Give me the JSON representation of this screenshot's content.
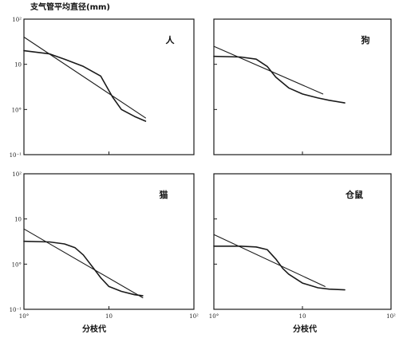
{
  "figure": {
    "ylabel": "支气管平均直径(mm)",
    "xlabel": "分枝代",
    "colors": {
      "line": "#1a1a1a",
      "frame": "#1a1a1a",
      "background": "#ffffff"
    }
  },
  "chart_data": [
    {
      "type": "line",
      "label": "人",
      "xscale": "log",
      "yscale": "log",
      "xlim": [
        1,
        100
      ],
      "ylim": [
        0.1,
        100
      ],
      "xticks": [
        "10°",
        "10",
        "10²"
      ],
      "yticks": [
        "10²",
        "10",
        "10°",
        "10⁻¹"
      ],
      "grid": false,
      "series": [
        {
          "x": [
            1,
            2,
            3,
            5,
            8,
            11,
            14,
            20,
            27
          ],
          "y": [
            20,
            17,
            13,
            9,
            5.5,
            1.9,
            1.0,
            0.7,
            0.55
          ]
        },
        {
          "x": [
            1,
            27
          ],
          "y": [
            40,
            0.65
          ]
        }
      ]
    },
    {
      "type": "line",
      "label": "狗",
      "xscale": "log",
      "yscale": "log",
      "xlim": [
        1,
        100
      ],
      "ylim": [
        0.1,
        100
      ],
      "xticks": [
        "10°",
        "10",
        "10²"
      ],
      "yticks": [
        "10²",
        "10",
        "10°",
        "10⁻¹"
      ],
      "grid": false,
      "series": [
        {
          "x": [
            1,
            2,
            3,
            4,
            5,
            7,
            10,
            15,
            20,
            30
          ],
          "y": [
            15,
            14.5,
            13,
            9,
            5.2,
            3.0,
            2.2,
            1.8,
            1.6,
            1.4
          ]
        },
        {
          "x": [
            1,
            17
          ],
          "y": [
            25,
            2.2
          ]
        }
      ]
    },
    {
      "type": "line",
      "label": "猫",
      "xscale": "log",
      "yscale": "log",
      "xlim": [
        1,
        100
      ],
      "ylim": [
        0.1,
        100
      ],
      "xticks": [
        "10°",
        "10",
        "10²"
      ],
      "yticks": [
        "10²",
        "10",
        "10°",
        "10⁻¹"
      ],
      "grid": false,
      "series": [
        {
          "x": [
            1,
            2,
            3,
            4,
            5,
            7,
            8,
            10,
            14,
            20,
            25
          ],
          "y": [
            3.2,
            3.1,
            2.8,
            2.3,
            1.6,
            0.7,
            0.5,
            0.32,
            0.25,
            0.21,
            0.2
          ]
        },
        {
          "x": [
            1,
            25
          ],
          "y": [
            6,
            0.18
          ]
        }
      ]
    },
    {
      "type": "line",
      "label": "仓鼠",
      "xscale": "log",
      "yscale": "log",
      "xlim": [
        1,
        100
      ],
      "ylim": [
        0.1,
        100
      ],
      "xticks": [
        "10°",
        "10",
        "10²"
      ],
      "yticks": [
        "10²",
        "10",
        "10°",
        "10⁻¹"
      ],
      "grid": false,
      "series": [
        {
          "x": [
            1,
            2,
            3,
            4,
            5,
            6,
            7,
            10,
            15,
            20,
            30
          ],
          "y": [
            2.5,
            2.5,
            2.4,
            2.1,
            1.3,
            0.8,
            0.6,
            0.38,
            0.3,
            0.28,
            0.27
          ]
        },
        {
          "x": [
            1,
            18
          ],
          "y": [
            4.5,
            0.32
          ]
        }
      ]
    }
  ]
}
